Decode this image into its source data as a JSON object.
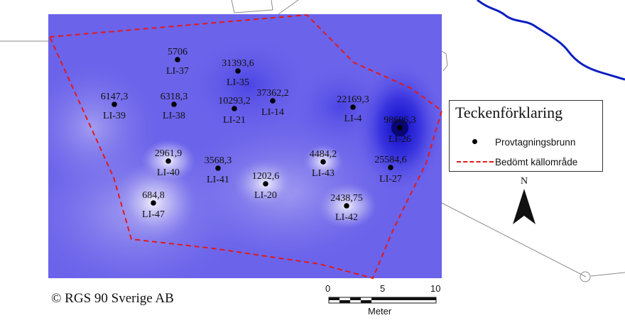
{
  "legend": {
    "title": "Teckenförklaring",
    "items": [
      {
        "symbol": "dot",
        "label": "Provtagningsbrunn"
      },
      {
        "symbol": "dashed-line",
        "label": "Bedömt källområde",
        "color": "#e01a1a"
      }
    ]
  },
  "north_arrow": {
    "label": "N"
  },
  "scale_bar": {
    "ticks": [
      "0",
      "5",
      "10"
    ],
    "unit": "Meter"
  },
  "copyright": "© RGS 90 Sverige AB",
  "colors": {
    "raster_base": "#6b63ea",
    "raster_high": "#1a16c8",
    "raster_low": "#e6e4fb",
    "boundary": "#e01a1a",
    "river": "#0b1fbf"
  },
  "wells": [
    {
      "id": "LI-37",
      "value": "5706"
    },
    {
      "id": "LI-35",
      "value": "31393,6"
    },
    {
      "id": "LI-39",
      "value": "6147,3"
    },
    {
      "id": "LI-38",
      "value": "6318,3"
    },
    {
      "id": "LI-21",
      "value": "10293,2"
    },
    {
      "id": "LI-14",
      "value": "37362,2"
    },
    {
      "id": "LI-4",
      "value": "22169,3"
    },
    {
      "id": "LI-26",
      "value": "98606,3"
    },
    {
      "id": "LI-40",
      "value": "2961,9"
    },
    {
      "id": "LI-41",
      "value": "3568,3"
    },
    {
      "id": "LI-20",
      "value": "1202,6"
    },
    {
      "id": "LI-43",
      "value": "4484,2"
    },
    {
      "id": "LI-27",
      "value": "25584,6"
    },
    {
      "id": "LI-47",
      "value": "684,8"
    },
    {
      "id": "LI-42",
      "value": "2438,75"
    }
  ]
}
